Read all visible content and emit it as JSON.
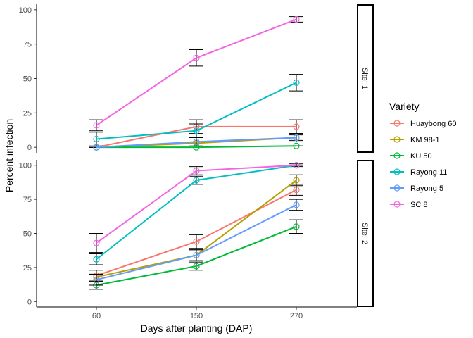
{
  "chart_data": {
    "type": "line",
    "xlabel": "Days after planting (DAP)",
    "ylabel": "Percent infection",
    "x": [
      60,
      150,
      270
    ],
    "x_tick_labels": [
      "60",
      "150",
      "270"
    ],
    "y_ticks": [
      0,
      25,
      50,
      75,
      100
    ],
    "ylim": [
      -4,
      104
    ],
    "grid": false,
    "legend_title": "Variety",
    "legend_position": "right",
    "panels": [
      {
        "strip": "Site: 1",
        "series": [
          {
            "name": "Huaybong 60",
            "color": "#F8766D",
            "values": [
              0,
              15,
              15
            ],
            "err": [
              0,
              5,
              5
            ]
          },
          {
            "name": "KM 98-1",
            "color": "#B79F00",
            "values": [
              0,
              3,
              7
            ],
            "err": [
              0,
              3,
              3
            ]
          },
          {
            "name": "KU 50",
            "color": "#00BA38",
            "values": [
              0,
              0,
              1
            ],
            "err": [
              0,
              0,
              0
            ]
          },
          {
            "name": "Rayong 11",
            "color": "#00BFC4",
            "values": [
              6,
              12,
              47
            ],
            "err": [
              5,
              5,
              6
            ]
          },
          {
            "name": "Rayong 5",
            "color": "#619CFF",
            "values": [
              0,
              4,
              7
            ],
            "err": [
              0,
              3,
              2
            ]
          },
          {
            "name": "SC 8",
            "color": "#F564E3",
            "values": [
              16,
              65,
              93
            ],
            "err": [
              4,
              6,
              2
            ]
          }
        ]
      },
      {
        "strip": "Site: 2",
        "series": [
          {
            "name": "Huaybong 60",
            "color": "#F8766D",
            "values": [
              19,
              44,
              82
            ],
            "err": [
              4,
              5,
              4
            ]
          },
          {
            "name": "KM 98-1",
            "color": "#B79F00",
            "values": [
              18,
              34,
              89
            ],
            "err": [
              3,
              4,
              4
            ]
          },
          {
            "name": "KU 50",
            "color": "#00BA38",
            "values": [
              12,
              26,
              55
            ],
            "err": [
              3,
              3,
              5
            ]
          },
          {
            "name": "Rayong 11",
            "color": "#00BFC4",
            "values": [
              31,
              89,
              100
            ],
            "err": [
              4,
              3,
              1
            ]
          },
          {
            "name": "Rayong 5",
            "color": "#619CFF",
            "values": [
              16,
              34,
              71
            ],
            "err": [
              4,
              4,
              4
            ]
          },
          {
            "name": "SC 8",
            "color": "#F564E3",
            "values": [
              43,
              96,
              100
            ],
            "err": [
              7,
              3,
              0
            ]
          }
        ]
      }
    ]
  }
}
